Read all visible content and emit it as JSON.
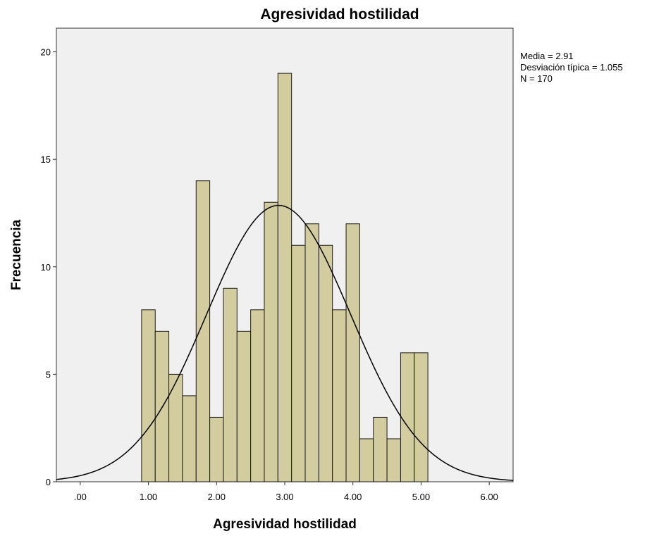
{
  "chart_data": {
    "type": "histogram",
    "title": "Agresividad hostilidad",
    "xlabel": "Agresividad hostilidad",
    "ylabel": "Frecuencia",
    "xlim": [
      -0.35,
      6.35
    ],
    "ylim": [
      0,
      21.1
    ],
    "x_ticks": [
      0,
      1,
      2,
      3,
      4,
      5,
      6
    ],
    "x_tick_labels": [
      ".00",
      "1.00",
      "2.00",
      "3.00",
      "4.00",
      "5.00",
      "6.00"
    ],
    "y_ticks": [
      0,
      5,
      10,
      15,
      20
    ],
    "y_tick_labels": [
      "0",
      "5",
      "10",
      "15",
      "20"
    ],
    "bin_width": 0.2,
    "bins": [
      {
        "x0": 0.9,
        "x1": 1.1,
        "count": 8
      },
      {
        "x0": 1.1,
        "x1": 1.3,
        "count": 7
      },
      {
        "x0": 1.3,
        "x1": 1.5,
        "count": 5
      },
      {
        "x0": 1.5,
        "x1": 1.7,
        "count": 4
      },
      {
        "x0": 1.7,
        "x1": 1.9,
        "count": 14
      },
      {
        "x0": 1.9,
        "x1": 2.1,
        "count": 3
      },
      {
        "x0": 2.1,
        "x1": 2.3,
        "count": 9
      },
      {
        "x0": 2.3,
        "x1": 2.5,
        "count": 7
      },
      {
        "x0": 2.5,
        "x1": 2.7,
        "count": 8
      },
      {
        "x0": 2.7,
        "x1": 2.9,
        "count": 13
      },
      {
        "x0": 2.9,
        "x1": 3.1,
        "count": 19
      },
      {
        "x0": 3.1,
        "x1": 3.3,
        "count": 11
      },
      {
        "x0": 3.3,
        "x1": 3.5,
        "count": 12
      },
      {
        "x0": 3.5,
        "x1": 3.7,
        "count": 11
      },
      {
        "x0": 3.7,
        "x1": 3.9,
        "count": 8
      },
      {
        "x0": 3.9,
        "x1": 4.1,
        "count": 12
      },
      {
        "x0": 4.1,
        "x1": 4.3,
        "count": 2
      },
      {
        "x0": 4.3,
        "x1": 4.5,
        "count": 3
      },
      {
        "x0": 4.5,
        "x1": 4.7,
        "count": 2
      },
      {
        "x0": 4.7,
        "x1": 4.9,
        "count": 6
      },
      {
        "x0": 4.9,
        "x1": 5.1,
        "count": 6
      }
    ],
    "normal_curve": {
      "mean": 2.91,
      "sd": 1.055,
      "n": 170,
      "bin_width": 0.2
    },
    "stats_lines": [
      "Media = 2.91",
      "Desviación típica = 1.055",
      "N = 170"
    ],
    "grid": false,
    "colors": {
      "bar_fill": "#d3cc9e",
      "bar_stroke": "#1a1a1a",
      "plot_bg": "#f0f0f0",
      "curve": "#000000"
    }
  }
}
